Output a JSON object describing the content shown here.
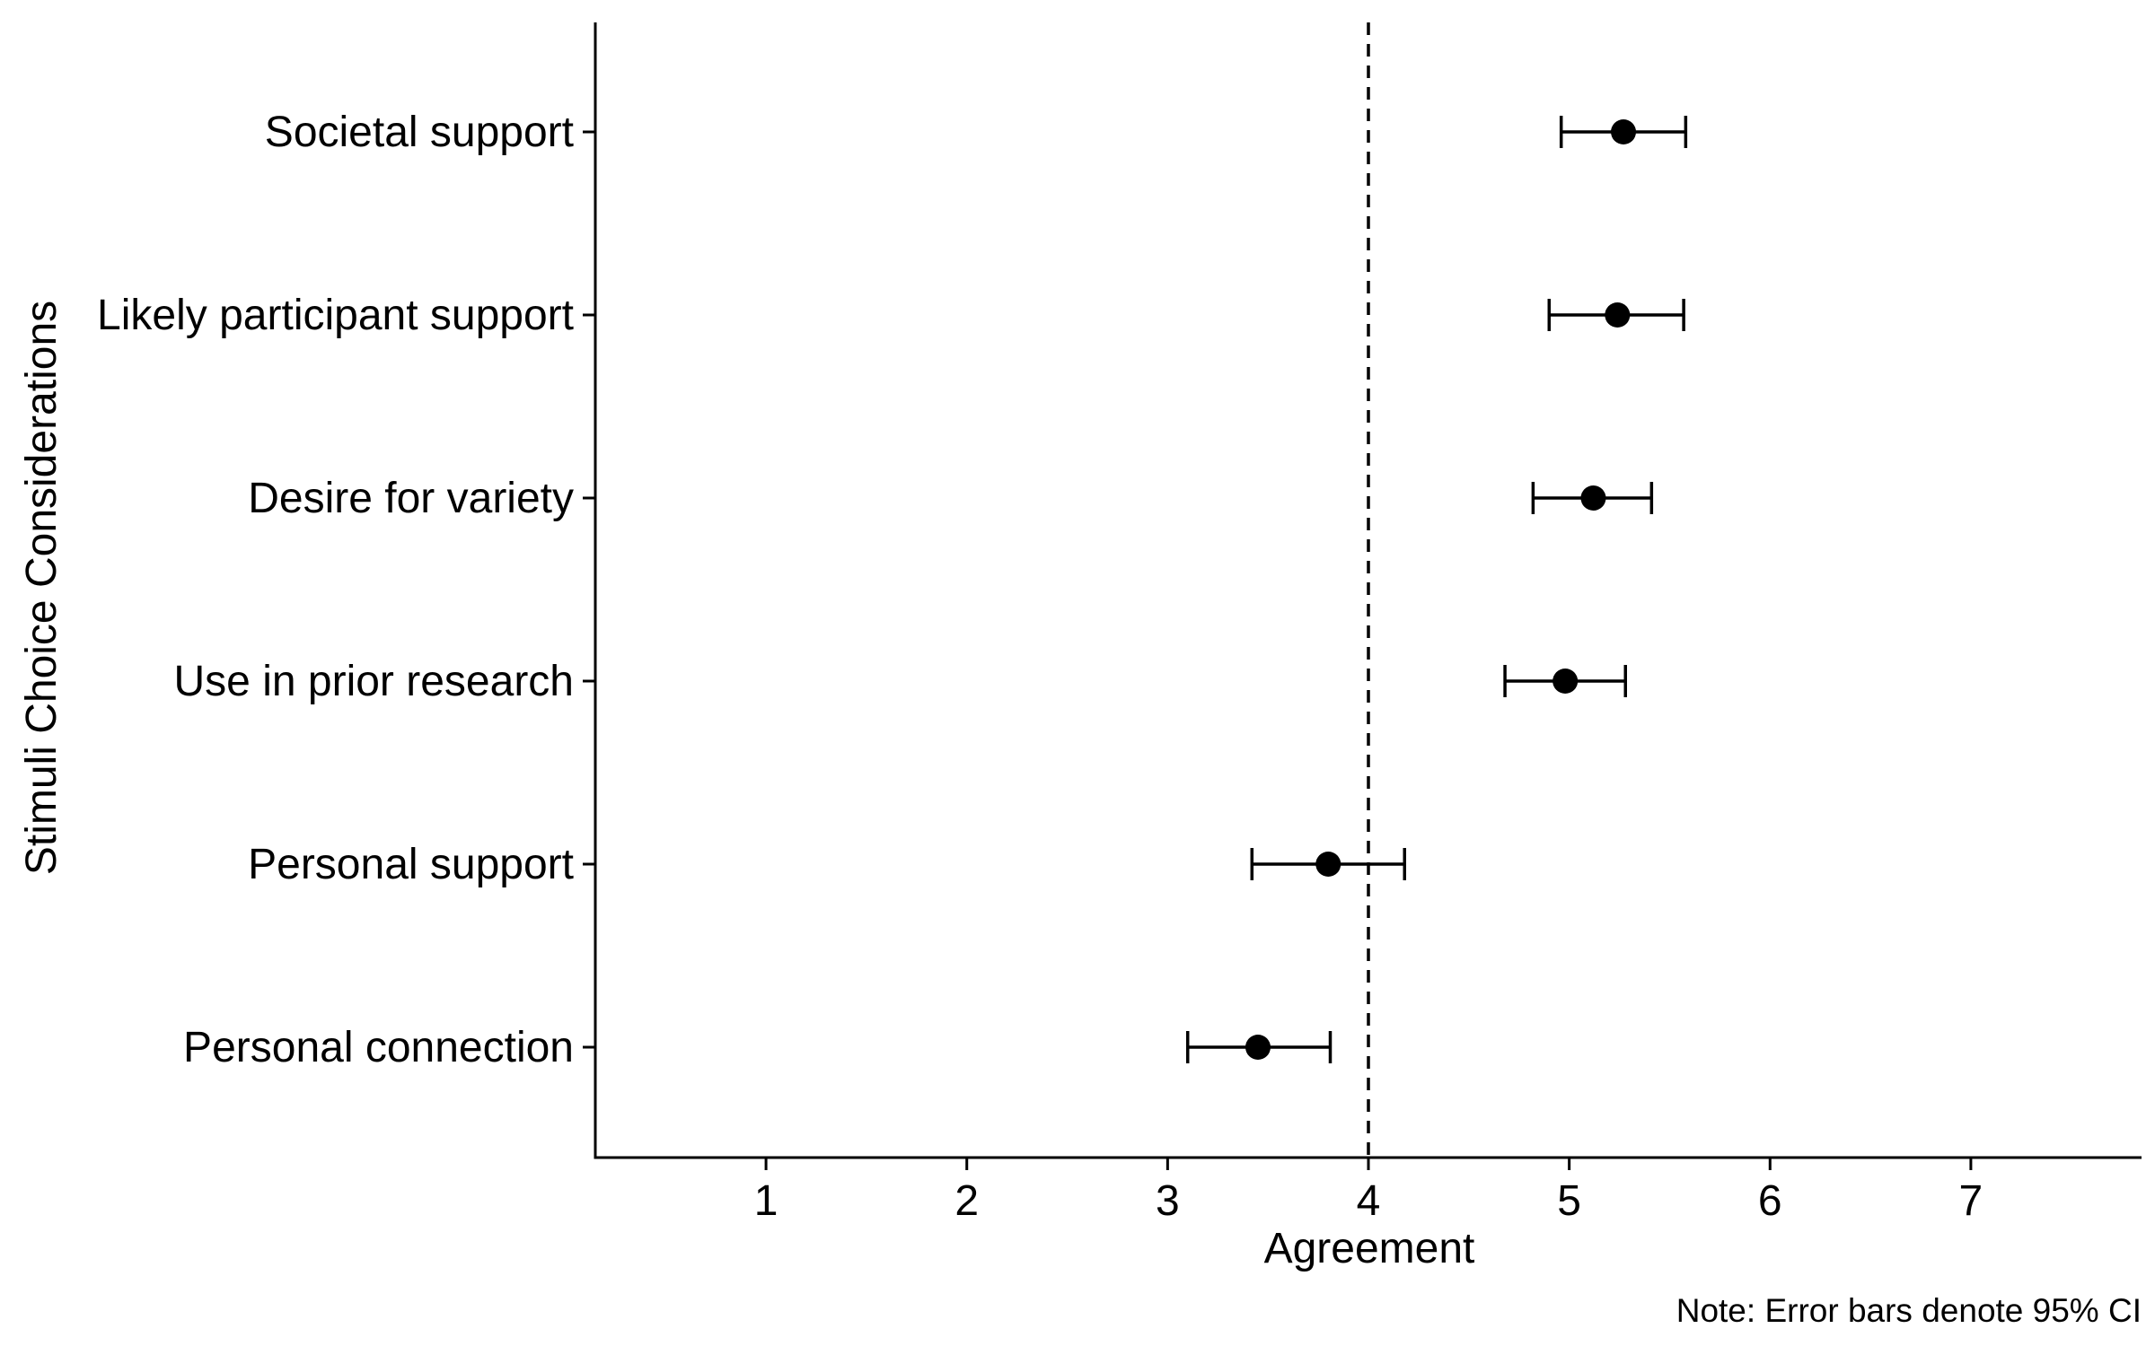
{
  "chart_data": {
    "type": "scatter",
    "xlabel": "Agreement",
    "ylabel": "Stimuli Choice Considerations",
    "note": "Note: Error bars denote 95% CI",
    "xlim": [
      0.15,
      7.85
    ],
    "xticks": [
      1,
      2,
      3,
      4,
      5,
      6,
      7
    ],
    "reference_line": {
      "x": 4,
      "style": "dashed"
    },
    "grid": false,
    "categories": [
      "Societal support",
      "Likely participant support",
      "Desire for variety",
      "Use in prior research",
      "Personal support",
      "Personal connection"
    ],
    "means": [
      5.27,
      5.24,
      5.12,
      4.98,
      3.8,
      3.45
    ],
    "ci_low": [
      4.96,
      4.9,
      4.82,
      4.68,
      3.42,
      3.1
    ],
    "ci_high": [
      5.58,
      5.57,
      5.41,
      5.28,
      4.18,
      3.81
    ]
  }
}
